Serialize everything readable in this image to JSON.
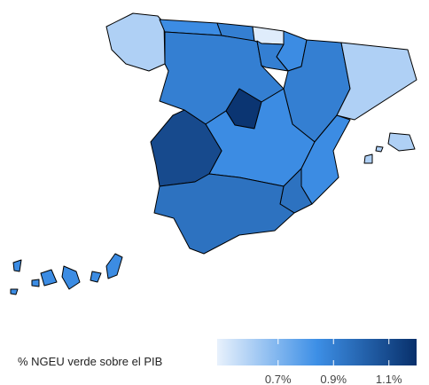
{
  "chart_data": {
    "type": "choropleth",
    "legend_title": "% NGEU verde sobre el PIB",
    "values": [
      0.6,
      0.85,
      0.9,
      0.5,
      0.85,
      0.9,
      0.9,
      0.6,
      0.9,
      1.18,
      0.85,
      1.1,
      0.85,
      0.95,
      0.95,
      0.6,
      0.85
    ],
    "colors": [
      "#e8f1fc",
      "#3d8fe6",
      "#08306b"
    ],
    "lim": [
      0.48,
      1.2
    ],
    "ticks": [
      {
        "value": 0.7,
        "label": "0.7%"
      },
      {
        "value": 0.9,
        "label": "0.9%"
      },
      {
        "value": 1.1,
        "label": "1.1%"
      }
    ]
  }
}
